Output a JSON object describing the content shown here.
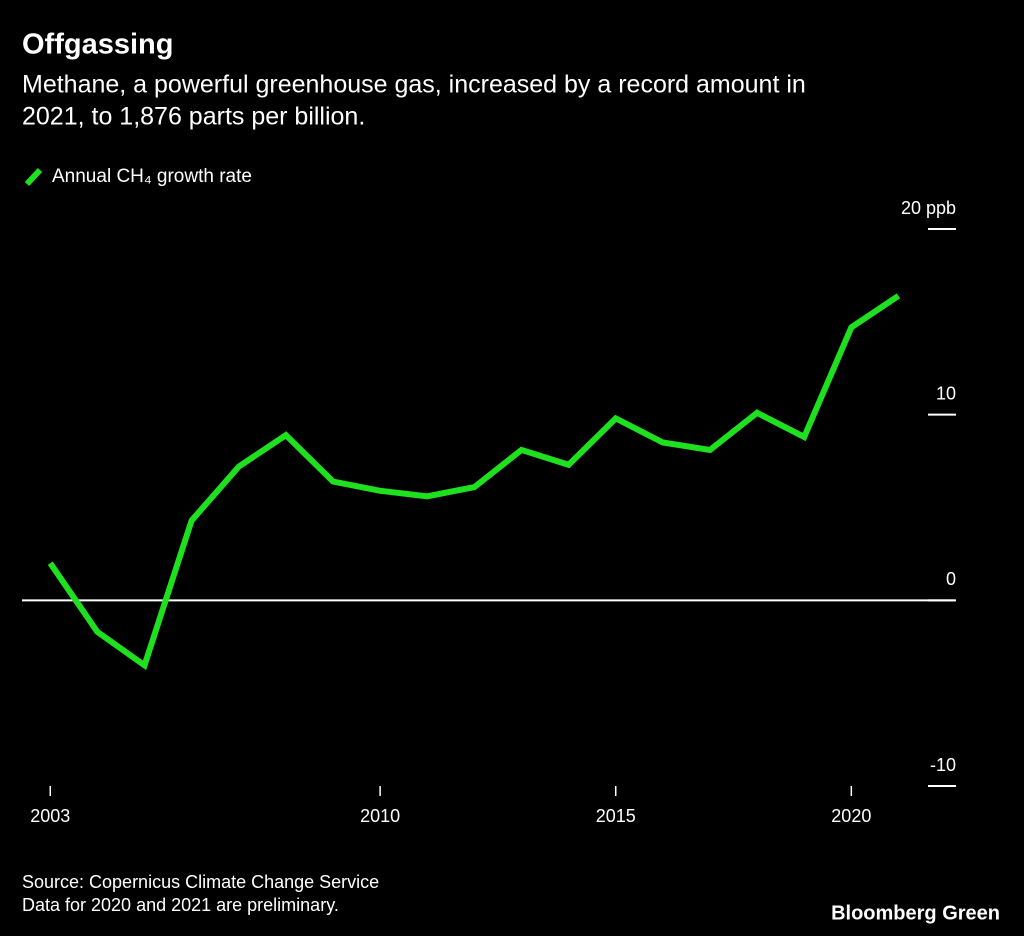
{
  "chart_data": {
    "type": "line",
    "title": "Offgassing",
    "subtitle_lines": [
      "Methane, a powerful greenhouse gas, increased by a record amount in",
      "2021, to 1,876 parts per billion."
    ],
    "x": [
      2003,
      2004,
      2005,
      2006,
      2007,
      2008,
      2009,
      2010,
      2011,
      2012,
      2013,
      2014,
      2015,
      2016,
      2017,
      2018,
      2019,
      2020,
      2021
    ],
    "series": [
      {
        "name": "Annual CH₄ growth rate",
        "color": "#1ee01e",
        "values": [
          2.0,
          -1.7,
          -3.5,
          4.3,
          7.2,
          8.9,
          6.4,
          5.9,
          5.6,
          6.1,
          8.1,
          7.3,
          9.8,
          8.5,
          8.1,
          10.1,
          8.8,
          14.7,
          16.4
        ]
      }
    ],
    "xlim": [
      2002.4,
      2022.2
    ],
    "xticks": [
      2003,
      2010,
      2015,
      2020
    ],
    "ylim": [
      -10,
      20
    ],
    "yticks": [
      -10,
      0,
      10,
      {
        "value": 20,
        "label": "20 ppb"
      }
    ],
    "zero_line": true,
    "source_lines": [
      "Source: Copernicus Climate Change Service",
      "Data for 2020 and 2021 are preliminary."
    ],
    "brand": "Bloomberg Green"
  }
}
